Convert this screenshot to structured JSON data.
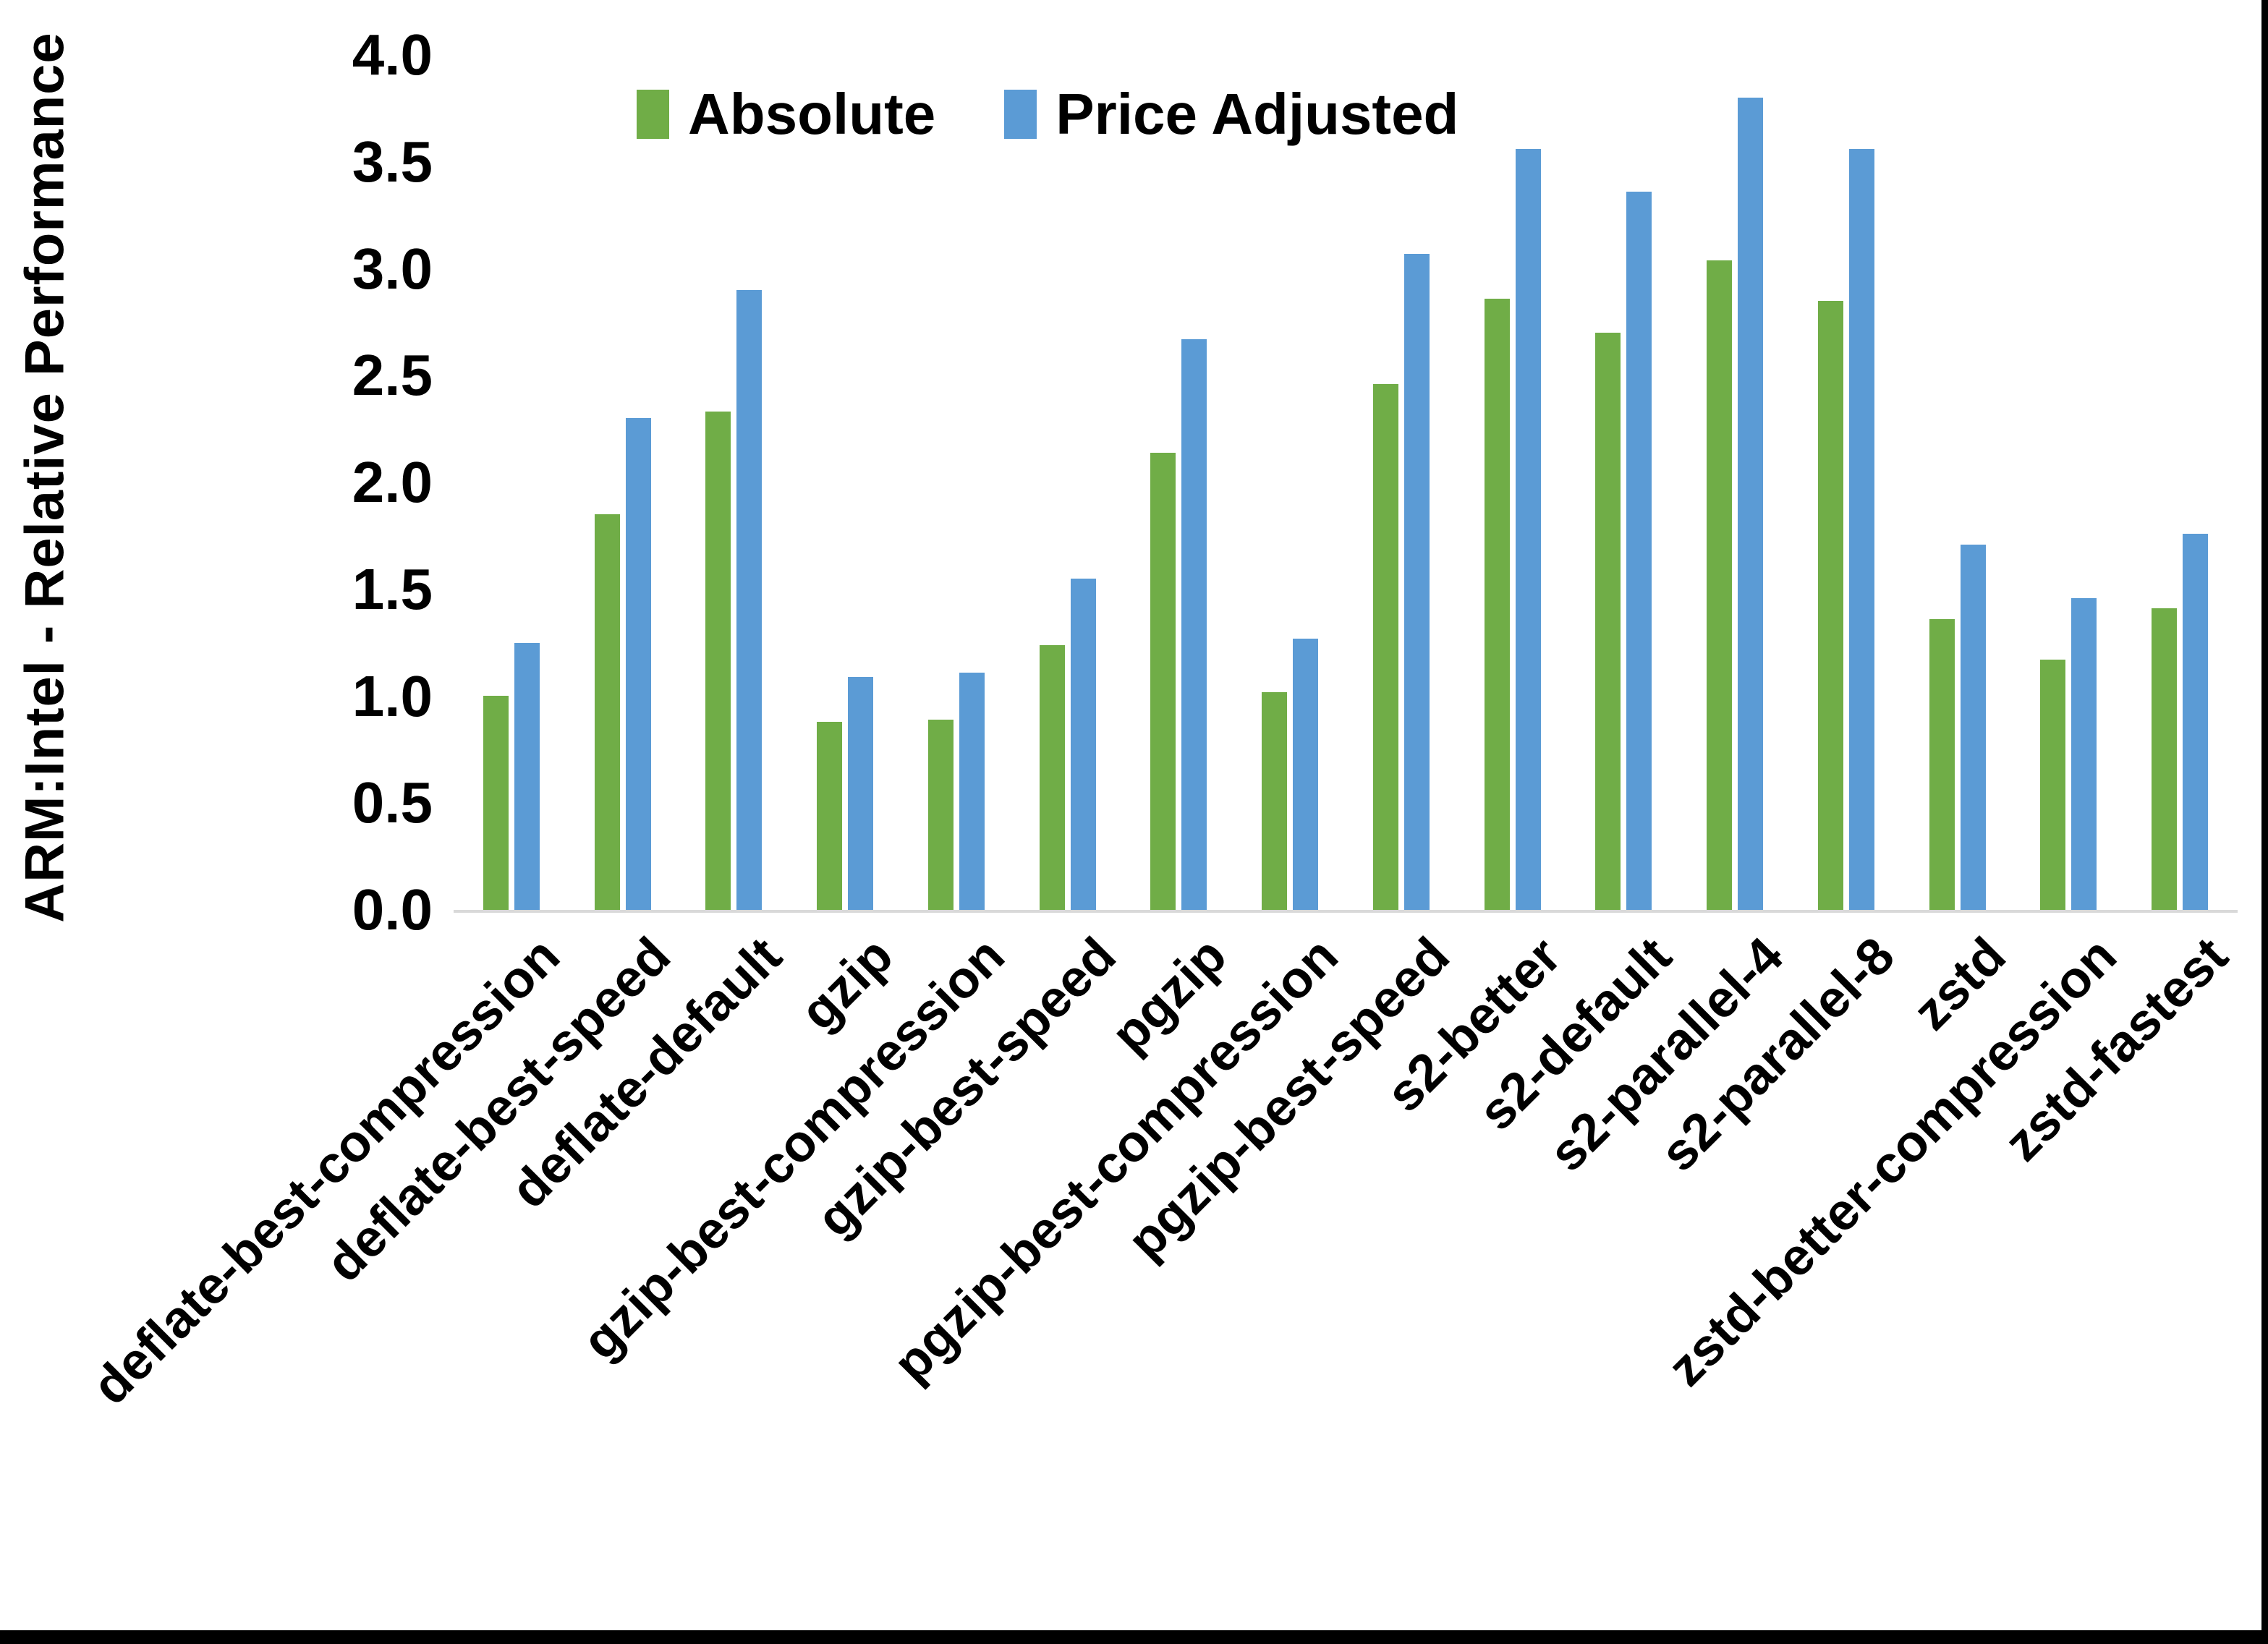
{
  "chart_data": {
    "type": "bar",
    "title": "",
    "ylabel": "ARM:Intel - Relative Performance",
    "xlabel": "",
    "ylim": [
      0.0,
      4.0
    ],
    "ytick_step": 0.5,
    "yticks": [
      "0.0",
      "0.5",
      "1.0",
      "1.5",
      "2.0",
      "2.5",
      "3.0",
      "3.5",
      "4.0"
    ],
    "grid": false,
    "legend_position": "top-center",
    "categories": [
      "deflate-best-compression",
      "deflate-best-speed",
      "deflate-default",
      "gzip",
      "gzip-best-compression",
      "gzip-best-speed",
      "pgzip",
      "pgzip-best-compression",
      "pgzip-best-speed",
      "s2-better",
      "s2-default",
      "s2-parallel-4",
      "s2-parallel-8",
      "zstd",
      "zstd-better-compression",
      "zstd-fastest"
    ],
    "series": [
      {
        "name": "Absolute",
        "color": "#70AD47",
        "values": [
          1.0,
          1.85,
          2.33,
          0.88,
          0.89,
          1.24,
          2.14,
          1.02,
          2.46,
          2.86,
          2.7,
          3.04,
          2.85,
          1.36,
          1.17,
          1.41
        ]
      },
      {
        "name": "Price Adjusted",
        "color": "#5B9BD5",
        "values": [
          1.25,
          2.3,
          2.9,
          1.09,
          1.11,
          1.55,
          2.67,
          1.27,
          3.07,
          3.56,
          3.36,
          3.8,
          3.56,
          1.71,
          1.46,
          1.76
        ]
      }
    ],
    "colors": {
      "axis_line": "#D9D9D9",
      "text": "#000000",
      "background": "#FFFFFF",
      "frame_border": "#000000"
    }
  }
}
